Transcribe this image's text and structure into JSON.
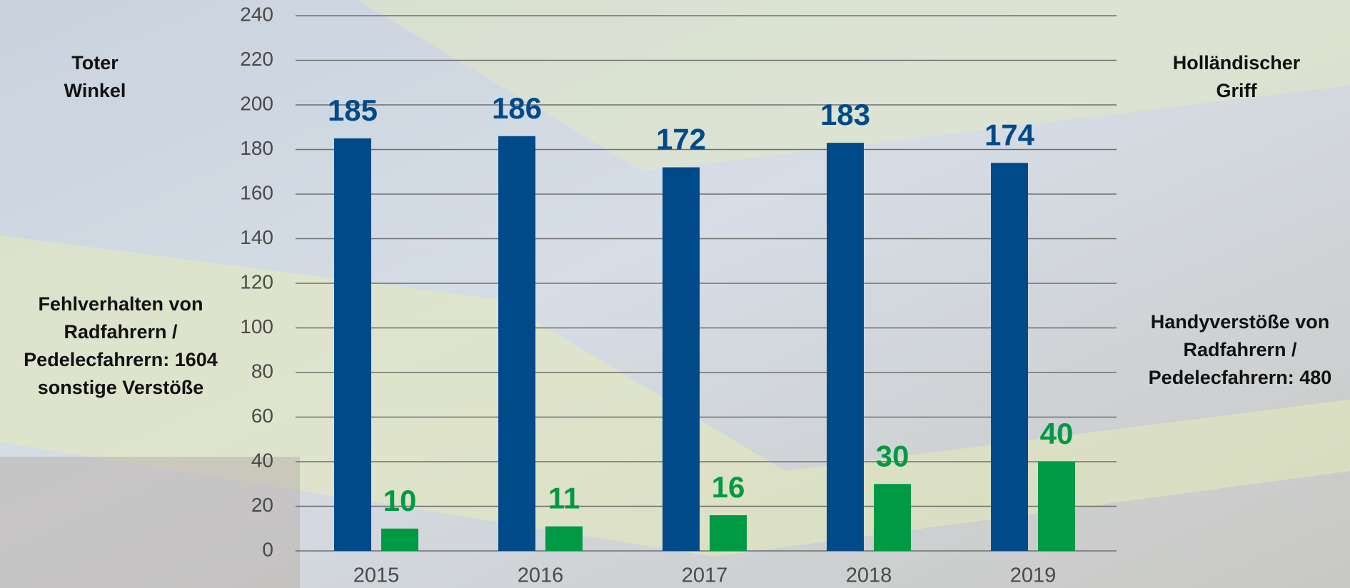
{
  "chart_data": {
    "type": "bar",
    "categories": [
      "2015",
      "2016",
      "2017",
      "2018",
      "2019"
    ],
    "series": [
      {
        "color": "#004a8a",
        "values": [
          185,
          186,
          172,
          183,
          174
        ]
      },
      {
        "color": "#009a44",
        "values": [
          10,
          11,
          16,
          30,
          40
        ]
      }
    ],
    "ylim": [
      0,
      240
    ],
    "yticks": [
      0,
      20,
      40,
      60,
      80,
      100,
      120,
      140,
      160,
      180,
      200,
      220,
      240
    ],
    "grid": true,
    "annotations": [
      {
        "lines": [
          "Toter",
          "Winkel"
        ]
      },
      {
        "lines": [
          "Holländischer",
          "Griff"
        ]
      },
      {
        "lines": [
          "Fehlverhalten von",
          "Radfahrern /",
          "Pedelecfahrern: 1604",
          "sonstige Verstöße"
        ]
      },
      {
        "lines": [
          "Handyverstöße von",
          "Radfahrern /",
          "Pedelecfahrern: 480"
        ]
      }
    ]
  }
}
